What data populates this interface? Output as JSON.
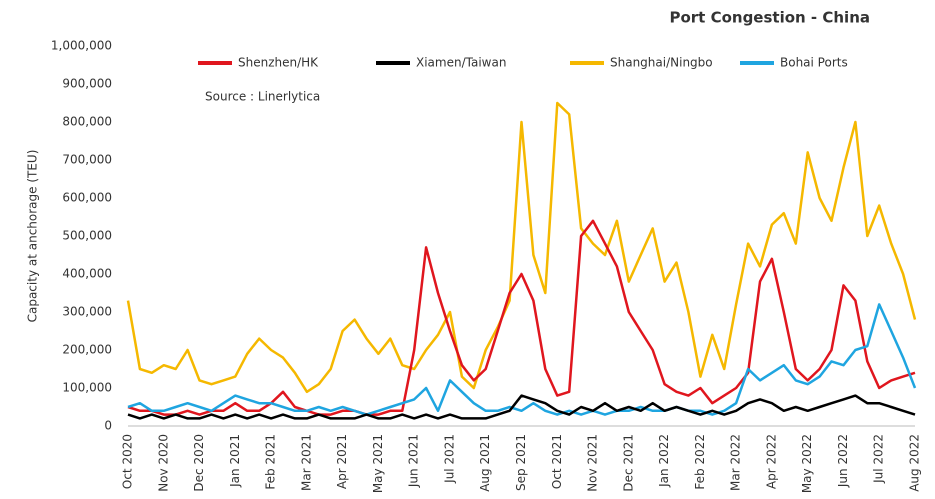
{
  "chart_data": {
    "type": "line",
    "title": "Port Congestion - China",
    "annotation": "Source : Linerlytica",
    "ylabel": "Capacity at anchorage (TEU)",
    "categories": [
      "Oct 2020",
      null,
      null,
      "Nov 2020",
      null,
      null,
      "Dec 2020",
      null,
      null,
      "Jan 2021",
      null,
      null,
      "Feb 2021",
      null,
      null,
      "Mar 2021",
      null,
      null,
      "Apr 2021",
      null,
      null,
      "May 2021",
      null,
      null,
      "Jun 2021",
      null,
      null,
      "Jul 2021",
      null,
      null,
      "Aug 2021",
      null,
      null,
      "Sep 2021",
      null,
      null,
      "Oct 2021",
      null,
      null,
      "Nov 2021",
      null,
      null,
      "Dec 2021",
      null,
      null,
      "Jan 2022",
      null,
      null,
      "Feb 2022",
      null,
      null,
      "Mar 2022",
      null,
      null,
      "Apr 2022",
      null,
      null,
      "May 2022",
      null,
      null,
      "Jun 2022",
      null,
      null,
      "Jul 2022",
      null,
      null,
      "Aug 2022"
    ],
    "series": [
      {
        "name": "Shenzhen/HK",
        "color": "#e0161e",
        "values": [
          50000,
          40000,
          40000,
          30000,
          30000,
          40000,
          30000,
          40000,
          40000,
          60000,
          40000,
          40000,
          60000,
          90000,
          50000,
          40000,
          30000,
          30000,
          40000,
          40000,
          30000,
          30000,
          40000,
          40000,
          200000,
          470000,
          350000,
          250000,
          160000,
          120000,
          150000,
          250000,
          350000,
          400000,
          330000,
          150000,
          80000,
          90000,
          500000,
          540000,
          480000,
          420000,
          300000,
          250000,
          200000,
          110000,
          90000,
          80000,
          100000,
          60000,
          80000,
          100000,
          140000,
          380000,
          440000,
          300000,
          150000,
          120000,
          150000,
          200000,
          370000,
          330000,
          170000,
          100000,
          120000,
          130000,
          140000
        ]
      },
      {
        "name": "Xiamen/Taiwan",
        "color": "#000000",
        "values": [
          30000,
          20000,
          30000,
          20000,
          30000,
          20000,
          20000,
          30000,
          20000,
          30000,
          20000,
          30000,
          20000,
          30000,
          20000,
          20000,
          30000,
          20000,
          20000,
          20000,
          30000,
          20000,
          20000,
          30000,
          20000,
          30000,
          20000,
          30000,
          20000,
          20000,
          20000,
          30000,
          40000,
          80000,
          70000,
          60000,
          40000,
          30000,
          50000,
          40000,
          60000,
          40000,
          50000,
          40000,
          60000,
          40000,
          50000,
          40000,
          30000,
          40000,
          30000,
          40000,
          60000,
          70000,
          60000,
          40000,
          50000,
          40000,
          50000,
          60000,
          70000,
          80000,
          60000,
          60000,
          50000,
          40000,
          30000
        ]
      },
      {
        "name": "Shanghai/Ningbo",
        "color": "#f5b800",
        "values": [
          330000,
          150000,
          140000,
          160000,
          150000,
          200000,
          120000,
          110000,
          120000,
          130000,
          190000,
          230000,
          200000,
          180000,
          140000,
          90000,
          110000,
          150000,
          250000,
          280000,
          230000,
          190000,
          230000,
          160000,
          150000,
          200000,
          240000,
          300000,
          130000,
          100000,
          200000,
          260000,
          330000,
          800000,
          450000,
          350000,
          850000,
          820000,
          520000,
          480000,
          450000,
          540000,
          380000,
          450000,
          520000,
          380000,
          430000,
          300000,
          130000,
          240000,
          150000,
          320000,
          480000,
          420000,
          530000,
          560000,
          480000,
          720000,
          600000,
          540000,
          680000,
          800000,
          500000,
          580000,
          480000,
          400000,
          280000
        ]
      },
      {
        "name": "Bohai Ports",
        "color": "#1fa5e0",
        "values": [
          50000,
          60000,
          40000,
          40000,
          50000,
          60000,
          50000,
          40000,
          60000,
          80000,
          70000,
          60000,
          60000,
          50000,
          40000,
          40000,
          50000,
          40000,
          50000,
          40000,
          30000,
          40000,
          50000,
          60000,
          70000,
          100000,
          40000,
          120000,
          90000,
          60000,
          40000,
          40000,
          50000,
          40000,
          60000,
          40000,
          30000,
          40000,
          30000,
          40000,
          30000,
          40000,
          40000,
          50000,
          40000,
          40000,
          50000,
          40000,
          40000,
          30000,
          40000,
          60000,
          150000,
          120000,
          140000,
          160000,
          120000,
          110000,
          130000,
          170000,
          160000,
          200000,
          210000,
          320000,
          250000,
          180000,
          100000
        ]
      }
    ],
    "ylim": [
      0,
      1000000
    ],
    "yticks": [
      0,
      {
        "value": 100000,
        "label": "100,000"
      },
      {
        "value": 200000,
        "label": "200,000"
      },
      {
        "value": 300000,
        "label": "300,000"
      },
      {
        "value": 400000,
        "label": "400,000"
      },
      {
        "value": 500000,
        "label": "500,000"
      },
      {
        "value": 600000,
        "label": "600,000"
      },
      {
        "value": 700000,
        "label": "700,000"
      },
      {
        "value": 800000,
        "label": "800,000"
      },
      {
        "value": 900000,
        "label": "900,000"
      },
      {
        "value": 1000000,
        "label": "1,000,000"
      }
    ],
    "grid": false,
    "legend": "top"
  }
}
